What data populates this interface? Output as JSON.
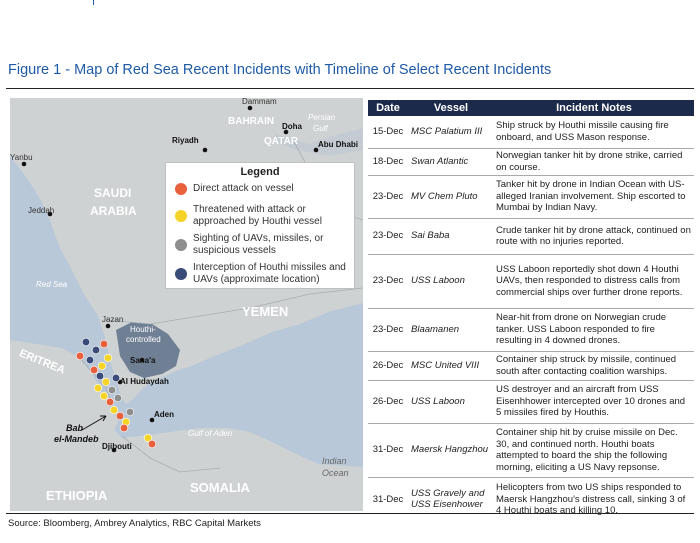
{
  "page": {
    "top_fragment": "I",
    "figure_title": "Figure 1 - Map of Red Sea Recent Incidents with Timeline of Select Recent Incidents",
    "source": "Source: Bloomberg, Ambrey Analytics, RBC Capital Markets"
  },
  "map": {
    "labels": {
      "dammam": "Dammam",
      "bahrain": "BAHRAIN",
      "doha": "Doha",
      "persian_gulf_1": "Persian",
      "persian_gulf_2": "Gulf",
      "riyadh": "Riyadh",
      "qatar": "QATAR",
      "abu_dhabi": "Abu Dhabi",
      "yanbu": "Yanbu",
      "saudi": "SAUDI",
      "arabia": "ARABIA",
      "jeddah": "Jeddah",
      "red_sea": "Red Sea",
      "jazan": "Jazan",
      "houthi_1": "Houthi-",
      "houthi_2": "controlled",
      "yemen": "YEMEN",
      "eritrea": "ERITREA",
      "sanaa": "Sana'a",
      "al_hudaydah": "Al Hudaydah",
      "aden": "Aden",
      "bab_1": "Bab",
      "bab_2": "el-Mandeb",
      "djibouti": "Djibouti",
      "gulf_of_aden": "Gulf of Aden",
      "indian_1": "Indian",
      "indian_2": "Ocean",
      "somalia": "SOMALIA",
      "ethiopia": "ETHIOPIA"
    },
    "legend": {
      "title": "Legend",
      "items": [
        {
          "label": "Direct attack on vessel",
          "color": "#e8603c"
        },
        {
          "label": "Threatened with attack or approached by Houthi vessel",
          "color": "#f5d327"
        },
        {
          "label": "Sighting of UAVs, missiles, or suspicious vessels",
          "color": "#8e8e8e"
        },
        {
          "label": "Interception of Houthi missiles and UAVs (approximate location)",
          "color": "#3a4b7a"
        }
      ]
    },
    "colors": {
      "sea": "#b9c8d8",
      "land": "#cfd2d3",
      "houthi_region": "#6f7f94",
      "attack": "#e8603c",
      "threat": "#f5d327",
      "sighting": "#8e8e8e",
      "interception": "#3a4b7a"
    }
  },
  "table": {
    "headers": {
      "date": "Date",
      "vessel": "Vessel",
      "notes": "Incident Notes"
    },
    "rows": [
      {
        "date": "15-Dec",
        "vessel": "MSC Palatium III",
        "notes": "Ship struck by Houthi missile causing fire onboard, and USS Mason response."
      },
      {
        "date": "18-Dec",
        "vessel": "Swan Atlantic",
        "notes": "Norwegian tanker hit by drone strike, carried on course."
      },
      {
        "date": "23-Dec",
        "vessel": "MV Chem Pluto",
        "notes": "Tanker hit by drone in Indian Ocean with US-alleged Iranian involvement. Ship escorted to Mumbai by Indian Navy."
      },
      {
        "date": "23-Dec",
        "vessel": "Sai Baba",
        "notes": "Crude tanker hit by drone attack, continued on route with no injuries reported."
      },
      {
        "date": "23-Dec",
        "vessel": "USS Laboon",
        "notes": "USS Laboon reportedly shot down 4 Houthi UAVs, then responded to distress calls from commercial ships over further drone reports."
      },
      {
        "date": "23-Dec",
        "vessel": "Blaamanen",
        "notes": "Near-hit from drone on Norwegian crude tanker. USS Laboon responded to fire resulting in 4 downed drones."
      },
      {
        "date": "26-Dec",
        "vessel": "MSC United VIII",
        "notes": "Container ship struck by missile, continued south after contacting coalition warships."
      },
      {
        "date": "26-Dec",
        "vessel": "USS Laboon",
        "notes": "US destroyer and an aircraft from USS Eisenhhower intercepted over 10 drones and 5 missiles fired by Houthis."
      },
      {
        "date": "31-Dec",
        "vessel": "Maersk Hangzhou",
        "notes": "Container ship hit by cruise missile on Dec. 30, and continued north. Houthi boats attempted to board the ship the following morning, eliciting a US Navy repsonse."
      },
      {
        "date": "31-Dec",
        "vessel": "USS Gravely and USS Eisenhower",
        "notes": "Helicopters from two US ships responded to Maersk Hangzhou's distress call, sinking 3 of 4 Houthi boats and killing 10."
      }
    ]
  }
}
